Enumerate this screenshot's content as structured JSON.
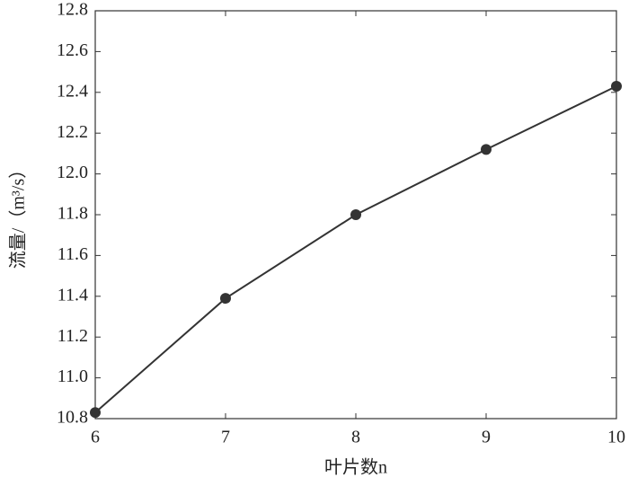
{
  "chart_data": {
    "type": "line",
    "x_label": "叶片数n",
    "y_label": "流量/（m³/s）",
    "x": [
      6,
      7,
      8,
      9,
      10
    ],
    "series": [
      {
        "color": "#333333",
        "values": [
          10.83,
          11.39,
          11.8,
          12.12,
          12.43
        ]
      }
    ],
    "xlim": [
      6,
      10
    ],
    "xticks": [
      6,
      7,
      8,
      9,
      10
    ],
    "ylim": [
      10.8,
      12.8
    ],
    "yticks": [
      10.8,
      {
        "value": 11,
        "label": "11.0"
      },
      11.2,
      11.4,
      11.6,
      11.8,
      {
        "value": 12,
        "label": "12.0"
      },
      12.2,
      12.4,
      12.6,
      12.8
    ],
    "grid": false
  }
}
